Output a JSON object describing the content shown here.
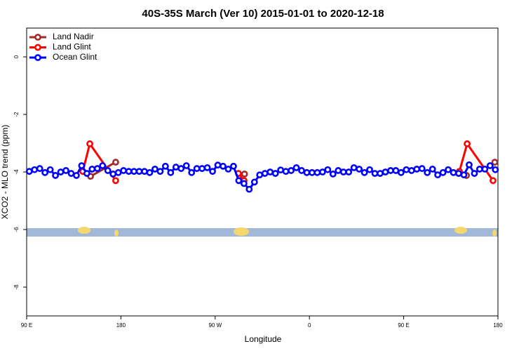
{
  "chart_data": {
    "type": "line",
    "title": "40S-35S March (Ver 10)   2015-01-01 to 2020-12-18",
    "xlabel": "Longitude",
    "ylabel": "XCO2 - MLO trend (ppm)",
    "xlim": [
      90,
      540
    ],
    "ylim": [
      -9,
      1
    ],
    "xticks": [
      {
        "value": 90,
        "label": "90 E"
      },
      180,
      {
        "value": 270,
        "label": "90 W"
      },
      {
        "value": 360,
        "label": "0"
      },
      {
        "value": 450,
        "label": "90 E"
      },
      {
        "value": 540,
        "label": "180"
      }
    ],
    "yticks": [
      0,
      -2,
      -4,
      -6,
      -8
    ],
    "legend": "upper left",
    "series": [
      {
        "name": "Land Nadir",
        "color": "#a52a2a",
        "x": [
          151,
          175,
          236,
          298,
          404,
          510,
          524,
          537
        ],
        "values": [
          -4.15,
          -3.66,
          null,
          -4.07,
          null,
          -4.12,
          null,
          -3.66
        ]
      },
      {
        "name": "Land Glint",
        "color": "#ff0000",
        "x": [
          143.6,
          150.3,
          175,
          232,
          292.2,
          297.6,
          400,
          503.2,
          510.6,
          535.3
        ],
        "values": [
          -3.98,
          -3.02,
          -4.3,
          null,
          -4.05,
          -4.3,
          null,
          -3.98,
          -3.02,
          -4.3
        ]
      },
      {
        "name": "Ocean Glint",
        "color": "#0000ff",
        "x": [
          92.5,
          97.5,
          102.5,
          107.5,
          112.5,
          117.5,
          122.5,
          127.5,
          132.5,
          137.5,
          142.5,
          147.5,
          152.5,
          157.5,
          162.5,
          167.5,
          172.5,
          177.5,
          182.5,
          187.5,
          192.5,
          197.5,
          202.5,
          207.5,
          212.5,
          217.5,
          222.5,
          227.5,
          232.5,
          237.5,
          242.5,
          247.5,
          252.5,
          257.5,
          262.5,
          267.5,
          272.5,
          277.5,
          282.5,
          287.5,
          292.5,
          297.5,
          302.5,
          307.5,
          312.5,
          317.5,
          322.5,
          327.5,
          332.5,
          337.5,
          342.5,
          347.5,
          352.5,
          357.5,
          362.5,
          367.5,
          372.5,
          377.5,
          382.5,
          387.5,
          392.5,
          397.5,
          402.5,
          407.5,
          412.5,
          417.5,
          422.5,
          427.5,
          432.5,
          437.5,
          442.5,
          447.5,
          452.5,
          457.5,
          462.5,
          467.5,
          472.5,
          477.5,
          482.5,
          487.5,
          492.5,
          497.5,
          502.5,
          507.5,
          512.5,
          517.5,
          522.5,
          527.5,
          532.5,
          537.5
        ],
        "values": [
          -3.98,
          -3.92,
          -3.88,
          -4.02,
          -3.92,
          -4.12,
          -4.0,
          -3.95,
          -4.05,
          -4.12,
          -3.78,
          -4.05,
          -3.9,
          -3.88,
          -3.78,
          -3.95,
          -4.07,
          -4.02,
          -3.95,
          -3.98,
          -3.98,
          -3.98,
          -3.98,
          -4.02,
          -3.9,
          -3.98,
          -3.8,
          -4.02,
          -3.83,
          -3.88,
          -3.78,
          -4.02,
          -3.88,
          -3.88,
          -3.85,
          -3.98,
          -3.76,
          -3.8,
          -3.9,
          -3.8,
          -4.3,
          -4.4,
          -4.6,
          -4.35,
          -4.1,
          -4.05,
          -4.0,
          -4.05,
          -3.93,
          -3.98,
          -3.95,
          -3.85,
          -3.95,
          -4.02,
          -4.02,
          -4.02,
          -4.0,
          -3.92,
          -4.07,
          -3.95,
          -4.0,
          -4.0,
          -3.85,
          -3.9,
          -4.02,
          -3.92,
          -4.05,
          -4.05,
          -4.0,
          -3.95,
          -3.95,
          -4.02,
          -3.92,
          -3.95,
          -3.9,
          -3.88,
          -4.02,
          -3.9,
          -4.1,
          -4.02,
          -3.92,
          -4.02,
          -4.05,
          -4.1,
          -3.75,
          -4.05,
          -3.9,
          -3.9,
          -3.78,
          -3.92
        ]
      }
    ]
  }
}
